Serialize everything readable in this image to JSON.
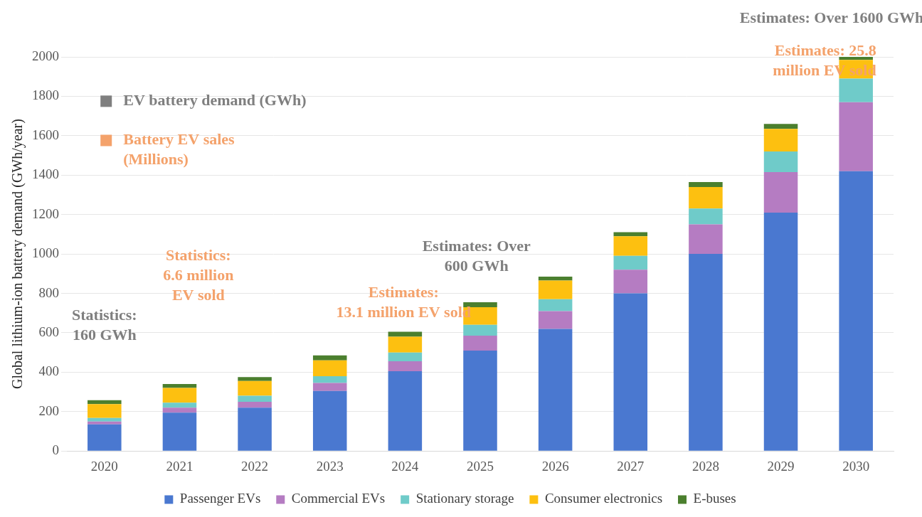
{
  "chart_data": {
    "type": "bar",
    "stacked": true,
    "y_label": "Global lithium-ion battery demand (GWh/year)",
    "categories": [
      "2020",
      "2021",
      "2022",
      "2023",
      "2024",
      "2025",
      "2026",
      "2027",
      "2028",
      "2029",
      "2030"
    ],
    "series": [
      {
        "name": "Passenger EVs",
        "color": "#4a78d0",
        "values": [
          135,
          195,
          220,
          305,
          405,
          510,
          620,
          800,
          1000,
          1210,
          1420
        ]
      },
      {
        "name": "Commercial EVs",
        "color": "#b57cc2",
        "values": [
          15,
          25,
          30,
          40,
          50,
          75,
          90,
          120,
          150,
          205,
          350
        ]
      },
      {
        "name": "Stationary storage",
        "color": "#6fcbc9",
        "values": [
          18,
          25,
          30,
          35,
          45,
          55,
          60,
          70,
          80,
          105,
          120
        ]
      },
      {
        "name": "Consumer electronics",
        "color": "#fdc010",
        "values": [
          70,
          75,
          75,
          80,
          80,
          90,
          95,
          100,
          110,
          115,
          95
        ]
      },
      {
        "name": "E-buses",
        "color": "#4b7f2e",
        "values": [
          20,
          20,
          20,
          25,
          25,
          25,
          20,
          20,
          25,
          25,
          15
        ]
      }
    ],
    "ylim": [
      0,
      2000
    ],
    "yticks": [
      0,
      200,
      400,
      600,
      800,
      1000,
      1200,
      1400,
      1600,
      1800,
      2000
    ],
    "grid": true,
    "legend": "bottom",
    "annotations": [
      {
        "text": "Statistics: 160 GWh",
        "color": "#7f7f7f"
      },
      {
        "text": "Statistics: 6.6 million EV sold",
        "color": "#f4a26b"
      },
      {
        "text": "Estimates: 13.1 million EV sold",
        "color": "#f4a26b"
      },
      {
        "text": "Estimates: Over 600 GWh",
        "color": "#7f7f7f"
      },
      {
        "text": "Estimates: 25.8 million EV sold",
        "color": "#f4a26b"
      },
      {
        "text": "Estimates: Over 1600 GWh",
        "color": "#7f7f7f"
      },
      {
        "text": "EV battery demand (GWh)",
        "color": "#7f7f7f"
      },
      {
        "text": "Battery EV sales (Millions)",
        "color": "#f4a26b"
      }
    ]
  }
}
